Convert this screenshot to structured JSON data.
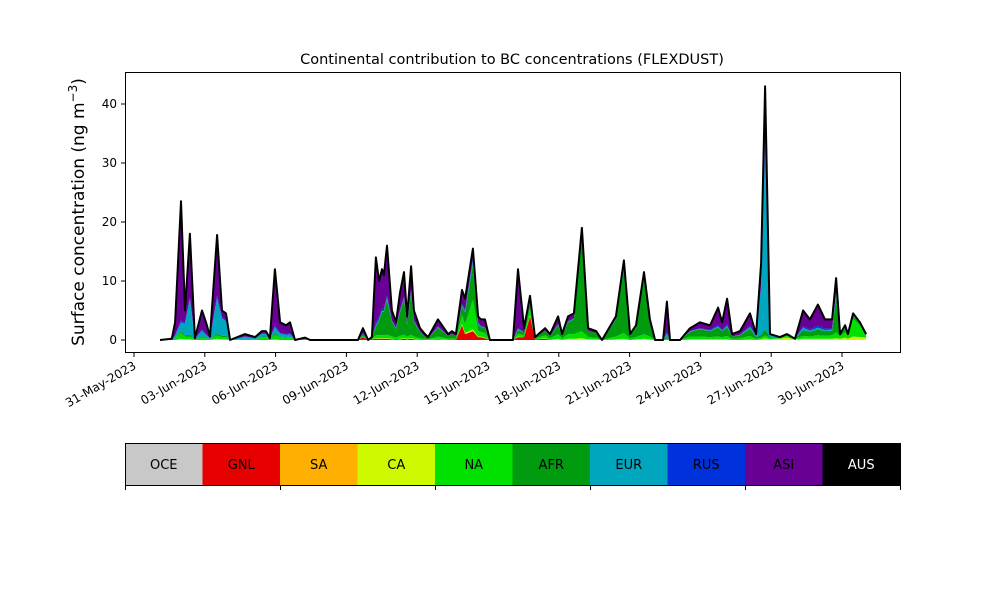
{
  "chart_data": {
    "type": "area",
    "stacked": true,
    "title": "Continental contribution to BC concentrations (FLEXDUST)",
    "ylabel": "Surface concentration (ng m",
    "ylabel_sup": "−3",
    "ylabel_end": ")",
    "xlabel": "",
    "x_units": "days since 31-May-2023",
    "xlim": [
      -0.4,
      32.5
    ],
    "ylim": [
      -2.2,
      45.5
    ],
    "yticks": [
      0,
      10,
      20,
      30,
      40
    ],
    "xticks": [
      {
        "t": 0,
        "label": "31-May-2023"
      },
      {
        "t": 3,
        "label": "03-Jun-2023"
      },
      {
        "t": 6,
        "label": "06-Jun-2023"
      },
      {
        "t": 9,
        "label": "09-Jun-2023"
      },
      {
        "t": 12,
        "label": "12-Jun-2023"
      },
      {
        "t": 15,
        "label": "15-Jun-2023"
      },
      {
        "t": 18,
        "label": "18-Jun-2023"
      },
      {
        "t": 21,
        "label": "21-Jun-2023"
      },
      {
        "t": 24,
        "label": "24-Jun-2023"
      },
      {
        "t": 27,
        "label": "27-Jun-2023"
      },
      {
        "t": 30,
        "label": "30-Jun-2023"
      }
    ],
    "legend": [
      {
        "name": "OCE",
        "color": "#c8c8c8",
        "text_color": "#000000"
      },
      {
        "name": "GNL",
        "color": "#e60000",
        "text_color": "#000000"
      },
      {
        "name": "SA",
        "color": "#ffaf00",
        "text_color": "#000000"
      },
      {
        "name": "CA",
        "color": "#cdfa00",
        "text_color": "#000000"
      },
      {
        "name": "NA",
        "color": "#00e100",
        "text_color": "#000000"
      },
      {
        "name": "AFR",
        "color": "#009b0f",
        "text_color": "#000000"
      },
      {
        "name": "EUR",
        "color": "#00a5be",
        "text_color": "#000000"
      },
      {
        "name": "RUS",
        "color": "#0032dc",
        "text_color": "#000000"
      },
      {
        "name": "ASI",
        "color": "#690096",
        "text_color": "#000000"
      },
      {
        "name": "AUS",
        "color": "#000000",
        "text_color": "#ffffff"
      }
    ],
    "legend_placement": "bottom colorbar",
    "point_fields": [
      "t",
      "GNL",
      "CA",
      "NA",
      "AFR",
      "EUR",
      "RUS",
      "ASI"
    ],
    "points": [
      [
        1.1,
        0,
        0,
        0,
        0,
        0,
        0,
        0
      ],
      [
        1.6,
        0,
        0,
        0,
        0,
        0,
        0,
        0.2
      ],
      [
        1.74,
        0,
        0,
        0.3,
        0,
        0.5,
        0,
        2.2
      ],
      [
        1.99,
        0,
        0.2,
        1,
        0.3,
        1.5,
        0.3,
        20.2
      ],
      [
        2.16,
        0,
        0.1,
        0.5,
        0.2,
        2,
        0.2,
        2
      ],
      [
        2.37,
        0,
        0.1,
        0.5,
        0.3,
        6,
        0.3,
        10.8
      ],
      [
        2.58,
        0,
        0,
        0.1,
        0,
        0.1,
        0,
        0.1
      ],
      [
        2.88,
        0,
        0,
        0.4,
        0.2,
        1,
        0.2,
        3.2
      ],
      [
        3.05,
        0,
        0,
        0.3,
        0.1,
        0.5,
        0.1,
        2
      ],
      [
        3.22,
        0,
        0,
        0.1,
        0,
        0.2,
        0,
        0.3
      ],
      [
        3.52,
        0,
        0.2,
        0.6,
        0.3,
        6,
        0.5,
        10.2
      ],
      [
        3.73,
        0,
        0.1,
        0.4,
        0.2,
        3,
        0.2,
        1.1
      ],
      [
        3.9,
        0,
        0.1,
        0.4,
        0.2,
        2.5,
        0.2,
        1.1
      ],
      [
        4.07,
        0,
        0,
        0,
        0,
        0,
        0,
        0
      ],
      [
        4.7,
        0,
        0,
        0.2,
        0,
        0.4,
        0,
        0.4
      ],
      [
        5.13,
        0,
        0,
        0.1,
        0,
        0.2,
        0,
        0.2
      ],
      [
        5.42,
        0,
        0,
        0.5,
        0.1,
        0.5,
        0,
        0.4
      ],
      [
        5.59,
        0,
        0,
        0.5,
        0.1,
        0.5,
        0,
        0.4
      ],
      [
        5.76,
        0,
        0,
        0.1,
        0,
        0.1,
        0,
        0.1
      ],
      [
        5.97,
        0,
        0.1,
        0.8,
        0.3,
        1,
        0.2,
        9.6
      ],
      [
        6.19,
        0,
        0,
        0.5,
        0.1,
        0.5,
        0.1,
        1.8
      ],
      [
        6.44,
        0,
        0,
        0.4,
        0.1,
        0.4,
        0.1,
        1.5
      ],
      [
        6.61,
        0,
        0,
        0.4,
        0.1,
        0.5,
        0.1,
        1.9
      ],
      [
        6.82,
        0,
        0,
        0,
        0,
        0,
        0,
        0
      ],
      [
        7.25,
        0,
        0,
        0.1,
        0,
        0.1,
        0,
        0.2
      ],
      [
        7.46,
        0,
        0,
        0,
        0,
        0,
        0,
        0
      ],
      [
        9.49,
        0,
        0,
        0,
        0,
        0,
        0,
        0
      ],
      [
        9.7,
        0.5,
        0,
        0.2,
        0.3,
        0,
        0.2,
        0.8
      ],
      [
        9.92,
        0,
        0,
        0,
        0,
        0,
        0,
        0
      ],
      [
        10.08,
        0.1,
        0,
        0.1,
        0.1,
        0,
        0,
        0.2
      ],
      [
        10.25,
        0.2,
        0.1,
        0.5,
        1.5,
        0.2,
        0.5,
        11
      ],
      [
        10.38,
        0.2,
        0.1,
        0.5,
        2.5,
        0.2,
        0.3,
        6.2
      ],
      [
        10.51,
        0.2,
        0.1,
        0.5,
        4,
        0.2,
        0.3,
        6.7
      ],
      [
        10.59,
        0.2,
        0.1,
        0.5,
        4,
        0.2,
        0.3,
        5.7
      ],
      [
        10.72,
        0.2,
        0.1,
        0.6,
        6,
        0.3,
        0.3,
        8.5
      ],
      [
        10.93,
        0.1,
        0.1,
        0.4,
        2.5,
        0.1,
        0.1,
        1.7
      ],
      [
        11.1,
        0.1,
        0,
        0.3,
        1.5,
        0.1,
        0.1,
        0.9
      ],
      [
        11.27,
        0.1,
        0.1,
        0.5,
        4,
        0.2,
        0.2,
        2.9
      ],
      [
        11.44,
        0.2,
        0.1,
        0.6,
        6,
        0.2,
        0.2,
        4.2
      ],
      [
        11.57,
        0.1,
        0.1,
        0.4,
        2,
        0.1,
        0.1,
        1.2
      ],
      [
        11.74,
        0.2,
        0.1,
        0.6,
        7,
        0.2,
        0.3,
        4.1
      ],
      [
        11.86,
        0.1,
        0.1,
        0.4,
        2.5,
        0.1,
        0.1,
        1.7
      ],
      [
        12.12,
        0,
        0,
        0.3,
        1,
        0.1,
        0,
        0.6
      ],
      [
        12.33,
        0,
        0,
        0.2,
        0.4,
        0,
        0,
        0.4
      ],
      [
        12.46,
        0,
        0,
        0.1,
        0.2,
        0,
        0,
        0.2
      ],
      [
        12.88,
        0.1,
        0.1,
        0.4,
        1.5,
        0.1,
        0.1,
        1.2
      ],
      [
        13.31,
        0,
        0,
        0.2,
        0.5,
        0,
        0,
        0.3
      ],
      [
        13.47,
        0,
        0,
        0.3,
        0.7,
        0,
        0,
        0.5
      ],
      [
        13.64,
        0,
        0,
        0.2,
        0.5,
        0,
        0,
        0.3
      ],
      [
        13.9,
        2.5,
        0.2,
        1.5,
        1.5,
        0.2,
        0.2,
        2.4
      ],
      [
        14.03,
        1,
        0.2,
        1.5,
        2,
        0.2,
        0.2,
        1.9
      ],
      [
        14.36,
        1.5,
        0.3,
        5,
        6,
        0.5,
        0.5,
        1.7
      ],
      [
        14.58,
        0.5,
        0.1,
        1,
        1,
        0.2,
        0.2,
        1
      ],
      [
        14.7,
        0.5,
        0.1,
        0.8,
        0.8,
        0.1,
        0.1,
        1.1
      ],
      [
        14.87,
        0.3,
        0.1,
        0.8,
        0.8,
        0.1,
        0.1,
        1.3
      ],
      [
        15.08,
        0,
        0,
        0,
        0,
        0,
        0,
        0
      ],
      [
        16.06,
        0,
        0,
        0,
        0,
        0,
        0,
        0
      ],
      [
        16.27,
        0.5,
        0.1,
        0.5,
        0.6,
        0.2,
        0.1,
        10
      ],
      [
        16.53,
        0.5,
        0,
        0.3,
        0.5,
        0,
        0,
        0.7
      ],
      [
        16.78,
        4,
        0.2,
        1.2,
        1,
        0.1,
        0.1,
        0.9
      ],
      [
        16.99,
        0.1,
        0,
        0.1,
        0.2,
        0,
        0,
        0.1
      ],
      [
        17.42,
        0.2,
        0.1,
        0.5,
        0.8,
        0,
        0,
        0.4
      ],
      [
        17.63,
        0,
        0,
        0.3,
        0.4,
        0,
        0,
        0.3
      ],
      [
        17.97,
        0,
        0.2,
        0.8,
        1.5,
        0.1,
        0.1,
        1.3
      ],
      [
        18.14,
        0,
        0,
        0.3,
        0.4,
        0,
        0,
        0.3
      ],
      [
        18.39,
        0,
        0.2,
        0.8,
        2,
        0.1,
        0.1,
        0.8
      ],
      [
        18.64,
        0,
        0.2,
        0.8,
        2.5,
        0.1,
        0.1,
        0.8
      ],
      [
        18.98,
        0,
        0.3,
        1.2,
        16,
        0.3,
        0.2,
        1
      ],
      [
        19.24,
        0,
        0.1,
        0.4,
        1,
        0,
        0,
        0.5
      ],
      [
        19.58,
        0,
        0.1,
        0.3,
        0.8,
        0,
        0,
        0.3
      ],
      [
        19.83,
        0,
        0,
        0,
        0,
        0,
        0,
        0
      ],
      [
        20.42,
        0,
        0.1,
        0.5,
        2.8,
        0.1,
        0.1,
        0.4
      ],
      [
        20.76,
        0,
        0.2,
        1,
        11,
        0.3,
        0.2,
        0.8
      ],
      [
        21.02,
        0,
        0,
        0.2,
        0.6,
        0,
        0,
        0.2
      ],
      [
        21.27,
        0,
        0.1,
        0.4,
        1.6,
        0.1,
        0,
        0.3
      ],
      [
        21.61,
        0,
        0.2,
        0.8,
        9.5,
        0.3,
        0.2,
        0.5
      ],
      [
        21.86,
        0,
        0.1,
        0.5,
        2.5,
        0.1,
        0,
        0.3
      ],
      [
        22.08,
        0,
        0,
        0,
        0,
        0,
        0,
        0
      ],
      [
        22.42,
        0,
        0,
        0,
        0,
        0,
        0,
        0
      ],
      [
        22.58,
        0,
        0,
        0.3,
        0.3,
        0.5,
        0.2,
        5.2
      ],
      [
        22.71,
        0,
        0,
        0,
        0,
        0,
        0,
        0
      ],
      [
        23.14,
        0,
        0,
        0,
        0,
        0,
        0,
        0
      ],
      [
        23.56,
        0,
        0.1,
        0.5,
        0.8,
        0.1,
        0,
        0.5
      ],
      [
        23.98,
        0,
        0.1,
        0.5,
        1.2,
        0.1,
        0.1,
        1
      ],
      [
        24.41,
        0,
        0.1,
        0.4,
        1,
        0.1,
        0.1,
        0.8
      ],
      [
        24.75,
        0,
        0.1,
        0.5,
        1.5,
        0.2,
        0.2,
        3
      ],
      [
        24.92,
        0,
        0.1,
        0.4,
        1,
        0.1,
        0.1,
        1.3
      ],
      [
        25.13,
        0,
        0.1,
        0.6,
        1.5,
        0.2,
        0.3,
        4.3
      ],
      [
        25.34,
        0,
        0,
        0.2,
        0.4,
        0,
        0,
        0.4
      ],
      [
        25.68,
        0,
        0,
        0.3,
        0.5,
        0.1,
        0,
        0.6
      ],
      [
        26.1,
        0,
        0.1,
        0.6,
        1.2,
        0.3,
        0.2,
        2.1
      ],
      [
        26.36,
        0,
        0,
        0.2,
        0.3,
        0.2,
        0,
        0.3
      ],
      [
        26.57,
        0,
        0.1,
        0.3,
        0.5,
        8,
        0.5,
        3.6
      ],
      [
        26.74,
        0,
        0.3,
        0.5,
        1,
        30,
        2,
        9.2
      ],
      [
        26.95,
        0,
        0.1,
        0.2,
        0.2,
        0.3,
        0,
        0.2
      ],
      [
        27.37,
        0,
        0.2,
        0.1,
        0.1,
        0.1,
        0,
        0
      ],
      [
        27.67,
        0,
        0.4,
        0.3,
        0.1,
        0.1,
        0,
        0.1
      ],
      [
        28.01,
        0,
        0.1,
        0.1,
        0,
        0,
        0,
        0
      ],
      [
        28.35,
        0,
        0.2,
        0.5,
        1,
        0.4,
        0.2,
        2.7
      ],
      [
        28.64,
        0,
        0.2,
        0.4,
        0.8,
        0.2,
        0.2,
        1.7
      ],
      [
        28.98,
        0,
        0.2,
        0.6,
        1,
        0.3,
        0.3,
        3.6
      ],
      [
        29.28,
        0,
        0.2,
        0.5,
        0.8,
        0.2,
        0.2,
        1.6
      ],
      [
        29.58,
        0,
        0.2,
        0.6,
        0.8,
        0.2,
        0.2,
        1.5
      ],
      [
        29.75,
        0,
        0.3,
        1,
        6,
        0.5,
        0.2,
        2.5
      ],
      [
        29.92,
        0,
        0.2,
        0.4,
        0.2,
        0.1,
        0,
        0.1
      ],
      [
        30.13,
        0,
        0.4,
        1,
        0.6,
        0.2,
        0.1,
        0.2
      ],
      [
        30.25,
        0,
        0.2,
        0.5,
        0.2,
        0.1,
        0,
        0
      ],
      [
        30.47,
        0,
        0.6,
        3,
        0.5,
        0.2,
        0.1,
        0.1
      ],
      [
        30.76,
        0,
        0.5,
        2,
        0.3,
        0.1,
        0,
        0.1
      ],
      [
        31.02,
        0,
        0.4,
        0.4,
        0.1,
        0.1,
        0,
        0
      ]
    ]
  }
}
